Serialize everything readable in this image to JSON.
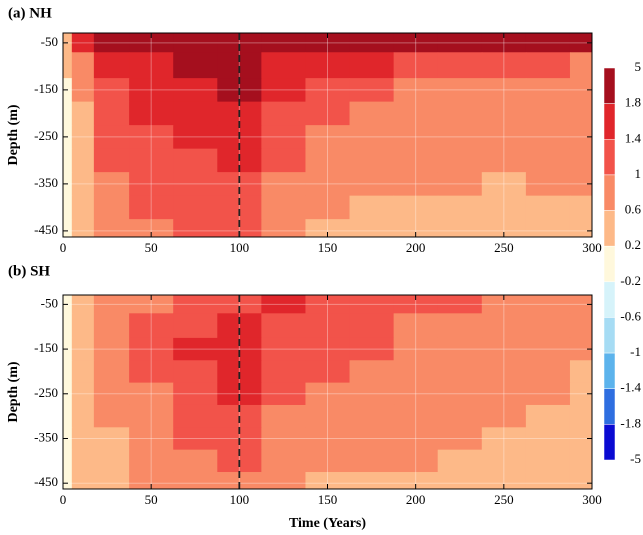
{
  "chart_data": [
    {
      "type": "contour",
      "title": "(a) NH",
      "ylabel": "Depth (m)",
      "x": [
        0,
        10,
        25,
        50,
        75,
        100,
        125,
        150,
        175,
        200,
        225,
        250,
        275,
        300
      ],
      "y": [
        -40,
        -100,
        -150,
        -200,
        -250,
        -300,
        -350,
        -400,
        -450
      ],
      "z": [
        [
          0.3,
          1.5,
          2.2,
          2.5,
          2.6,
          2.7,
          2.5,
          2.2,
          2.0,
          2.0,
          2.0,
          1.9,
          1.9,
          1.9
        ],
        [
          0.2,
          0.8,
          1.5,
          1.7,
          1.8,
          2.0,
          1.7,
          1.5,
          1.4,
          1.3,
          1.2,
          1.1,
          1.0,
          0.9
        ],
        [
          0.1,
          0.6,
          1.3,
          1.5,
          1.6,
          1.8,
          1.5,
          1.2,
          1.0,
          0.9,
          0.9,
          0.9,
          0.9,
          0.8
        ],
        [
          0.1,
          0.5,
          1.2,
          1.4,
          1.5,
          1.6,
          1.3,
          1.0,
          0.9,
          0.8,
          0.8,
          0.8,
          0.8,
          0.8
        ],
        [
          0.1,
          0.4,
          1.1,
          1.3,
          1.4,
          1.5,
          1.1,
          0.9,
          0.8,
          0.7,
          0.7,
          0.7,
          0.7,
          0.7
        ],
        [
          0.1,
          0.3,
          1.0,
          1.2,
          1.3,
          1.4,
          1.0,
          0.8,
          0.7,
          0.6,
          0.7,
          0.6,
          0.7,
          0.6
        ],
        [
          0.1,
          0.3,
          0.9,
          1.1,
          1.2,
          1.2,
          0.9,
          0.7,
          0.6,
          0.6,
          0.6,
          0.5,
          0.6,
          0.6
        ],
        [
          0.1,
          0.2,
          0.8,
          1.0,
          1.1,
          1.1,
          0.8,
          0.6,
          0.5,
          0.5,
          0.5,
          0.5,
          0.5,
          0.5
        ],
        [
          0.1,
          0.2,
          0.7,
          0.9,
          1.0,
          1.0,
          0.7,
          0.5,
          0.4,
          0.5,
          0.4,
          0.5,
          0.4,
          0.5
        ]
      ],
      "xlim": [
        0,
        300
      ],
      "xticks": [
        0,
        50,
        100,
        150,
        200,
        250,
        300
      ],
      "ylim": [
        -463,
        -29
      ],
      "yticks": [
        -50,
        -150,
        -250,
        -350,
        -450
      ],
      "vline": 100,
      "grid": true
    },
    {
      "type": "contour",
      "title": "(b) SH",
      "ylabel": "Depth (m)",
      "xlabel": "Time (Years)",
      "x": [
        0,
        10,
        25,
        50,
        75,
        100,
        125,
        150,
        175,
        200,
        225,
        250,
        275,
        300
      ],
      "y": [
        -40,
        -100,
        -150,
        -200,
        -250,
        -300,
        -350,
        -400,
        -450
      ],
      "z": [
        [
          0.0,
          0.3,
          0.6,
          0.9,
          1.1,
          1.3,
          1.4,
          1.3,
          1.2,
          1.1,
          1.0,
          0.9,
          0.8,
          0.6
        ],
        [
          0.1,
          0.3,
          0.7,
          1.0,
          1.3,
          1.4,
          1.3,
          1.1,
          1.0,
          0.9,
          0.9,
          0.8,
          0.7,
          0.6
        ],
        [
          0.1,
          0.3,
          0.7,
          1.0,
          1.4,
          1.5,
          1.2,
          1.1,
          1.0,
          0.9,
          0.9,
          0.8,
          0.7,
          0.6
        ],
        [
          0.1,
          0.3,
          0.7,
          1.0,
          1.3,
          1.5,
          1.1,
          1.0,
          0.9,
          0.9,
          0.8,
          0.7,
          0.6,
          0.5
        ],
        [
          0.1,
          0.3,
          0.6,
          0.9,
          1.2,
          1.4,
          1.0,
          0.9,
          0.9,
          0.8,
          0.7,
          0.6,
          0.6,
          0.5
        ],
        [
          0.1,
          0.2,
          0.6,
          0.9,
          1.1,
          1.3,
          0.9,
          0.8,
          0.8,
          0.7,
          0.6,
          0.6,
          0.5,
          0.5
        ],
        [
          0.1,
          0.2,
          0.5,
          0.8,
          1.0,
          1.2,
          0.8,
          0.7,
          0.7,
          0.6,
          0.6,
          0.5,
          0.5,
          0.5
        ],
        [
          0.1,
          0.2,
          0.5,
          0.7,
          0.9,
          1.0,
          0.7,
          0.6,
          0.6,
          0.6,
          0.5,
          0.5,
          0.4,
          0.4
        ],
        [
          0.1,
          0.2,
          0.4,
          0.7,
          0.8,
          0.9,
          0.6,
          0.5,
          0.5,
          0.5,
          0.5,
          0.5,
          0.4,
          0.4
        ]
      ],
      "xlim": [
        0,
        300
      ],
      "xticks": [
        0,
        50,
        100,
        150,
        200,
        250,
        300
      ],
      "ylim": [
        -463,
        -29
      ],
      "yticks": [
        -50,
        -150,
        -250,
        -350,
        -450
      ],
      "vline": 100,
      "grid": true
    }
  ],
  "colorbar": {
    "levels": [
      5,
      1.8,
      1.4,
      1,
      0.6,
      0.2,
      -0.2,
      -0.6,
      -1,
      -1.4,
      -1.8,
      -5
    ],
    "colors": [
      "#a50f1e",
      "#e0262b",
      "#f2534a",
      "#f98a66",
      "#fdb988",
      "#fff8dc",
      "#d6f3fa",
      "#a6dcf4",
      "#5cb3ec",
      "#2e6ee0",
      "#0a0ad2"
    ]
  }
}
